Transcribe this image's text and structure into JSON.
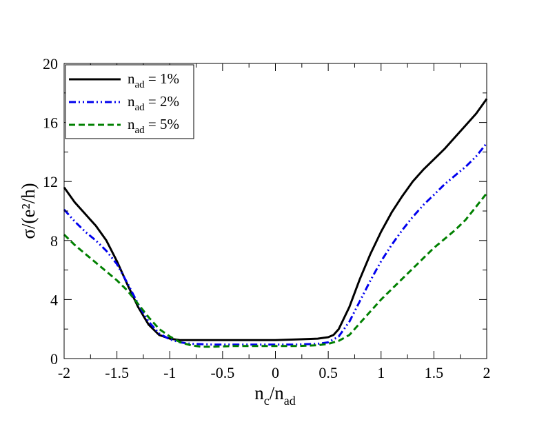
{
  "chart_data": {
    "type": "line",
    "title": "",
    "xlabel": {
      "base": "n",
      "sub1": "c",
      "slash": "/n",
      "sub2": "ad"
    },
    "ylabel": "σ/(e²/h)",
    "xlim": [
      -2,
      2
    ],
    "ylim": [
      0,
      20
    ],
    "xticks": [
      -2,
      -1.5,
      -1,
      -0.5,
      0,
      0.5,
      1,
      1.5,
      2
    ],
    "xtick_labels": [
      "-2",
      "-1.5",
      "-1",
      "-0.5",
      "0",
      "0.5",
      "1",
      "1.5",
      "2"
    ],
    "yticks": [
      0,
      4,
      8,
      12,
      16,
      20
    ],
    "ytick_labels": [
      "0",
      "4",
      "8",
      "12",
      "16",
      "20"
    ],
    "grid": false,
    "legend_position": "top-left",
    "series": [
      {
        "name": "n_ad = 1%",
        "label_base": "n",
        "label_sub": "ad",
        "label_rest": " = 1%",
        "color": "#000000",
        "style": "solid",
        "points": [
          [
            -2.0,
            11.6
          ],
          [
            -1.9,
            10.6
          ],
          [
            -1.8,
            9.8
          ],
          [
            -1.7,
            9.0
          ],
          [
            -1.6,
            8.0
          ],
          [
            -1.5,
            6.6
          ],
          [
            -1.4,
            5.0
          ],
          [
            -1.3,
            3.5
          ],
          [
            -1.2,
            2.3
          ],
          [
            -1.1,
            1.6
          ],
          [
            -1.0,
            1.35
          ],
          [
            -0.9,
            1.25
          ],
          [
            -0.8,
            1.25
          ],
          [
            -0.6,
            1.25
          ],
          [
            -0.4,
            1.25
          ],
          [
            -0.2,
            1.25
          ],
          [
            0.0,
            1.25
          ],
          [
            0.2,
            1.3
          ],
          [
            0.4,
            1.35
          ],
          [
            0.5,
            1.45
          ],
          [
            0.55,
            1.6
          ],
          [
            0.6,
            2.0
          ],
          [
            0.7,
            3.5
          ],
          [
            0.8,
            5.4
          ],
          [
            0.9,
            7.1
          ],
          [
            1.0,
            8.6
          ],
          [
            1.1,
            9.9
          ],
          [
            1.2,
            11.0
          ],
          [
            1.3,
            12.0
          ],
          [
            1.4,
            12.8
          ],
          [
            1.5,
            13.5
          ],
          [
            1.6,
            14.2
          ],
          [
            1.7,
            15.0
          ],
          [
            1.8,
            15.8
          ],
          [
            1.9,
            16.6
          ],
          [
            2.0,
            17.6
          ]
        ]
      },
      {
        "name": "n_ad = 2%",
        "label_base": "n",
        "label_sub": "ad",
        "label_rest": " = 2%",
        "color": "#0000ee",
        "style": "dashdotdot",
        "points": [
          [
            -2.0,
            10.1
          ],
          [
            -1.9,
            9.3
          ],
          [
            -1.8,
            8.6
          ],
          [
            -1.7,
            8.0
          ],
          [
            -1.6,
            7.3
          ],
          [
            -1.5,
            6.4
          ],
          [
            -1.4,
            5.1
          ],
          [
            -1.3,
            3.7
          ],
          [
            -1.2,
            2.5
          ],
          [
            -1.1,
            1.7
          ],
          [
            -1.0,
            1.3
          ],
          [
            -0.9,
            1.1
          ],
          [
            -0.8,
            1.0
          ],
          [
            -0.6,
            0.95
          ],
          [
            -0.4,
            0.95
          ],
          [
            -0.2,
            0.95
          ],
          [
            0.0,
            0.95
          ],
          [
            0.2,
            0.95
          ],
          [
            0.4,
            1.0
          ],
          [
            0.5,
            1.1
          ],
          [
            0.6,
            1.5
          ],
          [
            0.7,
            2.5
          ],
          [
            0.8,
            3.9
          ],
          [
            0.9,
            5.3
          ],
          [
            1.0,
            6.6
          ],
          [
            1.1,
            7.7
          ],
          [
            1.2,
            8.7
          ],
          [
            1.3,
            9.6
          ],
          [
            1.4,
            10.4
          ],
          [
            1.5,
            11.1
          ],
          [
            1.6,
            11.8
          ],
          [
            1.7,
            12.4
          ],
          [
            1.8,
            13.0
          ],
          [
            1.9,
            13.7
          ],
          [
            2.0,
            14.6
          ]
        ]
      },
      {
        "name": "n_ad = 5%",
        "label_base": "n",
        "label_sub": "ad",
        "label_rest": " = 5%",
        "color": "#008000",
        "style": "dashed",
        "points": [
          [
            -2.0,
            8.4
          ],
          [
            -1.9,
            7.7
          ],
          [
            -1.8,
            7.1
          ],
          [
            -1.7,
            6.5
          ],
          [
            -1.6,
            5.9
          ],
          [
            -1.5,
            5.3
          ],
          [
            -1.4,
            4.6
          ],
          [
            -1.3,
            3.7
          ],
          [
            -1.2,
            2.8
          ],
          [
            -1.1,
            2.0
          ],
          [
            -1.0,
            1.5
          ],
          [
            -0.9,
            1.1
          ],
          [
            -0.8,
            0.9
          ],
          [
            -0.7,
            0.8
          ],
          [
            -0.6,
            0.8
          ],
          [
            -0.4,
            0.85
          ],
          [
            -0.2,
            0.85
          ],
          [
            0.0,
            0.85
          ],
          [
            0.2,
            0.85
          ],
          [
            0.4,
            0.9
          ],
          [
            0.5,
            1.0
          ],
          [
            0.6,
            1.2
          ],
          [
            0.7,
            1.6
          ],
          [
            0.8,
            2.4
          ],
          [
            0.9,
            3.2
          ],
          [
            1.0,
            4.0
          ],
          [
            1.1,
            4.7
          ],
          [
            1.2,
            5.4
          ],
          [
            1.3,
            6.1
          ],
          [
            1.4,
            6.8
          ],
          [
            1.5,
            7.5
          ],
          [
            1.6,
            8.1
          ],
          [
            1.7,
            8.7
          ],
          [
            1.8,
            9.4
          ],
          [
            1.9,
            10.3
          ],
          [
            2.0,
            11.2
          ]
        ]
      }
    ]
  }
}
